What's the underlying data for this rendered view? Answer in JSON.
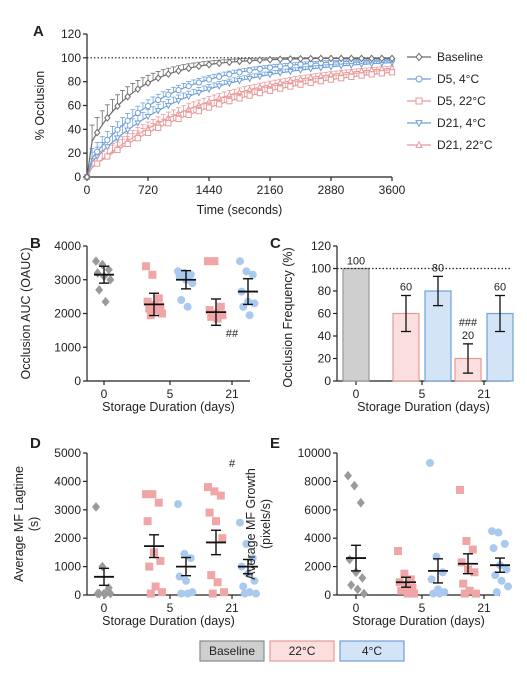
{
  "chart_data": [
    {
      "panel": "A",
      "type": "line",
      "xlabel": "Time (seconds)",
      "ylabel": "% Occlusion",
      "xlim": [
        0,
        3600
      ],
      "ylim": [
        0,
        120
      ],
      "x_ticks": [
        0,
        720,
        1440,
        2160,
        2880,
        3600
      ],
      "y_ticks": [
        0,
        20,
        40,
        60,
        80,
        100,
        120
      ],
      "reference_line": 100,
      "legend_position": "right",
      "series": [
        {
          "name": "Baseline",
          "color": "#6b6b6b",
          "marker": "diamond",
          "tau": 550,
          "start": 22,
          "err": 14
        },
        {
          "name": "D5, 4°C",
          "color": "#6fa0d8",
          "marker": "circle",
          "tau": 900,
          "start": 10,
          "err": 8
        },
        {
          "name": "D5, 22°C",
          "color": "#e89a9a",
          "marker": "square",
          "tau": 1750,
          "start": 5,
          "err": 7
        },
        {
          "name": "D21, 4°C",
          "color": "#6fa0d8",
          "marker": "triangle-down",
          "tau": 1150,
          "start": 8,
          "err": 8
        },
        {
          "name": "D21, 22°C",
          "color": "#e89a9a",
          "marker": "triangle-up",
          "tau": 1500,
          "start": 4,
          "err": 7
        }
      ]
    },
    {
      "panel": "B",
      "type": "scatter",
      "ylabel": "Occlusion AUC (OAUC)",
      "xlabel": "Storage Duration (days)",
      "categories": [
        "0",
        "5",
        "21"
      ],
      "ylim": [
        0,
        4000
      ],
      "y_ticks": [
        0,
        1000,
        2000,
        3000,
        4000
      ],
      "groups": [
        {
          "cat": 0,
          "color": "#9a9a9a",
          "marker": "diamond",
          "mean": 3150,
          "sem": 250,
          "points": [
            3550,
            3450,
            3300,
            3200,
            3100,
            3000,
            2700,
            2350
          ]
        },
        {
          "cat": 1,
          "color": "#f0a6a6",
          "marker": "square",
          "mean": 2270,
          "sem": 330,
          "points": [
            3400,
            3150,
            2450,
            2350,
            2250,
            2200,
            2150,
            2100,
            2000,
            1950
          ]
        },
        {
          "cat": 1,
          "color": "#a9c9ee",
          "marker": "circle",
          "mean": 3000,
          "sem": 270,
          "points": [
            3250,
            3200,
            3150,
            3100,
            3000,
            2900,
            2400,
            2200
          ]
        },
        {
          "cat": 2,
          "color": "#f0a6a6",
          "marker": "square",
          "mean": 2040,
          "sem": 390,
          "points": [
            3550,
            3550,
            2200,
            2100,
            2000,
            1950,
            1900,
            1850
          ]
        },
        {
          "cat": 2,
          "color": "#a9c9ee",
          "marker": "circle",
          "mean": 2650,
          "sem": 380,
          "points": [
            3550,
            3250,
            3150,
            2650,
            2350,
            2300,
            2200,
            1950
          ]
        }
      ],
      "annotations": [
        {
          "cat": 2,
          "y": 1300,
          "text": "##"
        }
      ]
    },
    {
      "panel": "C",
      "type": "bar",
      "ylabel": "Occlusion Frequency (%)",
      "xlabel": "Storage Duration (days)",
      "categories": [
        "0",
        "5",
        "21"
      ],
      "ylim": [
        0,
        120
      ],
      "y_ticks": [
        0,
        20,
        40,
        60,
        80,
        100,
        120
      ],
      "reference_line": 100,
      "bars": [
        {
          "cat": 0,
          "offset": 0,
          "value": 100,
          "label": "100",
          "err": 0,
          "fill": "#cfcfcf",
          "stroke": "#9a9a9a"
        },
        {
          "cat": 1,
          "offset": -1,
          "value": 60,
          "label": "60",
          "err": 16,
          "fill": "#fbdede",
          "stroke": "#e89a9a"
        },
        {
          "cat": 1,
          "offset": 1,
          "value": 80,
          "label": "80",
          "err": 13,
          "fill": "#d4e4f7",
          "stroke": "#6fa0d8"
        },
        {
          "cat": 2,
          "offset": -1,
          "value": 20,
          "label": "20",
          "err": 13,
          "fill": "#fbdede",
          "stroke": "#e89a9a"
        },
        {
          "cat": 2,
          "offset": 1,
          "value": 60,
          "label": "60",
          "err": 16,
          "fill": "#d4e4f7",
          "stroke": "#6fa0d8"
        }
      ],
      "annotations": [
        {
          "bar": 3,
          "text": "###"
        }
      ]
    },
    {
      "panel": "D",
      "type": "scatter",
      "ylabel": "Average MF Lagtime (s)",
      "xlabel": "Storage Duration (days)",
      "categories": [
        "0",
        "5",
        "21"
      ],
      "ylim": [
        0,
        5000
      ],
      "y_ticks": [
        0,
        1000,
        2000,
        3000,
        4000,
        5000
      ],
      "groups": [
        {
          "cat": 0,
          "color": "#9a9a9a",
          "marker": "diamond",
          "mean": 640,
          "sem": 300,
          "points": [
            3100,
            1000,
            250,
            50,
            50,
            50,
            50,
            50
          ]
        },
        {
          "cat": 1,
          "color": "#f0a6a6",
          "marker": "square",
          "mean": 1720,
          "sem": 400,
          "points": [
            3550,
            3550,
            3250,
            2600,
            1500,
            1200,
            1000,
            300,
            100,
            50
          ]
        },
        {
          "cat": 1,
          "color": "#a9c9ee",
          "marker": "circle",
          "mean": 1000,
          "sem": 320,
          "points": [
            3200,
            1450,
            1300,
            650,
            500,
            100,
            50,
            50
          ]
        },
        {
          "cat": 2,
          "color": "#f0a6a6",
          "marker": "square",
          "mean": 1850,
          "sem": 430,
          "points": [
            3800,
            3650,
            3500,
            2900,
            2600,
            2000,
            700,
            450,
            100,
            50
          ]
        },
        {
          "cat": 2,
          "color": "#a9c9ee",
          "marker": "circle",
          "mean": 1000,
          "sem": 250,
          "points": [
            2550,
            1800,
            1300,
            1000,
            750,
            500,
            300,
            100,
            50,
            50
          ]
        }
      ],
      "annotations": [
        {
          "cat": 2,
          "y": 4500,
          "text": "#"
        }
      ]
    },
    {
      "panel": "E",
      "type": "scatter",
      "ylabel": "Average MF Growth (pixels/s)",
      "xlabel": "Storage Duration (days)",
      "categories": [
        "0",
        "5",
        "21"
      ],
      "ylim": [
        0,
        10000
      ],
      "y_ticks": [
        0,
        2000,
        4000,
        6000,
        8000,
        10000
      ],
      "groups": [
        {
          "cat": 0,
          "color": "#9a9a9a",
          "marker": "diamond",
          "mean": 2600,
          "sem": 900,
          "points": [
            8400,
            7700,
            6500,
            2500,
            1600,
            1200,
            700,
            400,
            100
          ]
        },
        {
          "cat": 1,
          "color": "#f0a6a6",
          "marker": "square",
          "mean": 900,
          "sem": 350,
          "points": [
            3100,
            1500,
            1100,
            900,
            600,
            500,
            300,
            100,
            100
          ]
        },
        {
          "cat": 1,
          "color": "#a9c9ee",
          "marker": "circle",
          "mean": 1700,
          "sem": 850,
          "points": [
            9300,
            2700,
            1600,
            1100,
            400,
            200,
            100,
            100
          ]
        },
        {
          "cat": 2,
          "color": "#f0a6a6",
          "marker": "square",
          "mean": 2200,
          "sem": 700,
          "points": [
            7400,
            3800,
            3200,
            2300,
            1800,
            1600,
            800,
            300,
            100,
            100
          ]
        },
        {
          "cat": 2,
          "color": "#a9c9ee",
          "marker": "circle",
          "mean": 2100,
          "sem": 500,
          "points": [
            4500,
            4400,
            3600,
            3300,
            2100,
            1800,
            1400,
            1000,
            600,
            200
          ]
        }
      ]
    }
  ],
  "panel_labels": [
    "A",
    "B",
    "C",
    "D",
    "E"
  ],
  "legend": {
    "baseline": {
      "label": "Baseline",
      "fill": "#cfcfcf",
      "stroke": "#8a8a8a"
    },
    "warm": {
      "label": "22°C",
      "fill": "#fbdede",
      "stroke": "#e89a9a"
    },
    "cold": {
      "label": "4°C",
      "fill": "#d4e4f7",
      "stroke": "#6fa0d8"
    }
  }
}
